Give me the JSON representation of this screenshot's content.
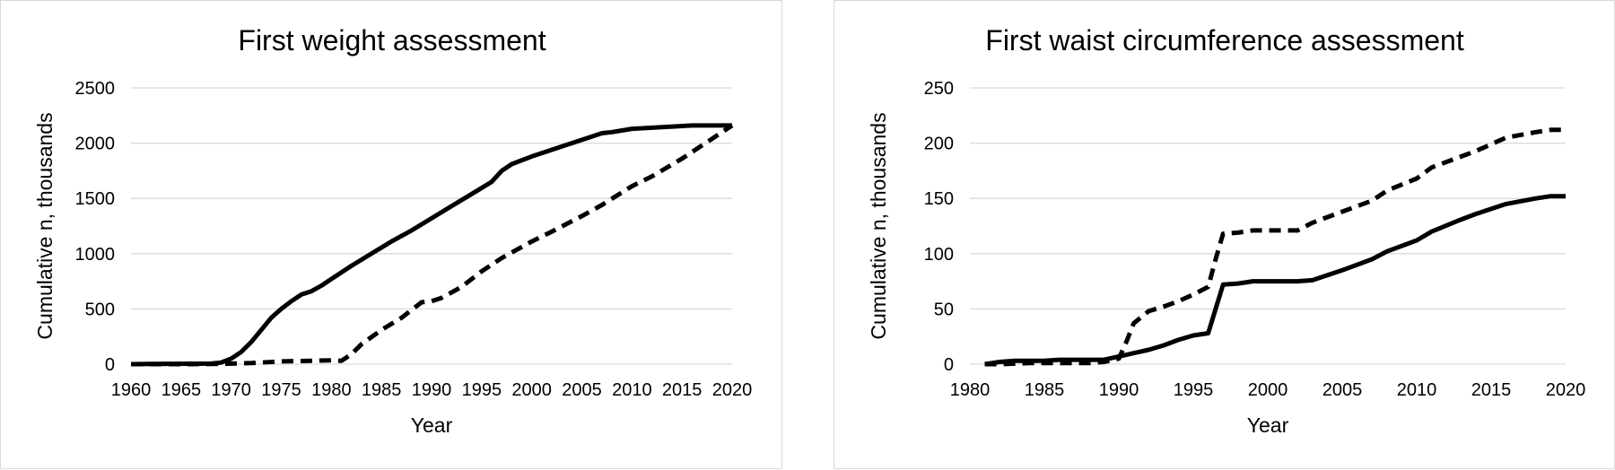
{
  "chart_data": [
    {
      "type": "line",
      "title": "First weight assessment",
      "xlabel": "Year",
      "ylabel": "Cumulative n, thousands",
      "xlim": [
        1960,
        2020
      ],
      "ylim": [
        0,
        2500
      ],
      "xticks": [
        1960,
        1965,
        1970,
        1975,
        1980,
        1985,
        1990,
        1995,
        2000,
        2005,
        2010,
        2015,
        2020
      ],
      "yticks": [
        0,
        500,
        1000,
        1500,
        2000,
        2500
      ],
      "grid": true,
      "legend": "none",
      "series": [
        {
          "style": "solid",
          "x": [
            1960,
            1962,
            1964,
            1966,
            1968,
            1969,
            1970,
            1971,
            1972,
            1973,
            1974,
            1975,
            1976,
            1977,
            1978,
            1979,
            1980,
            1982,
            1984,
            1986,
            1988,
            1990,
            1992,
            1994,
            1996,
            1997,
            1998,
            2000,
            2002,
            2004,
            2006,
            2007,
            2008,
            2010,
            2012,
            2014,
            2016,
            2018,
            2020
          ],
          "y": [
            0,
            2,
            3,
            4,
            5,
            15,
            50,
            110,
            200,
            310,
            420,
            500,
            570,
            630,
            660,
            710,
            770,
            890,
            1000,
            1110,
            1210,
            1320,
            1430,
            1540,
            1650,
            1750,
            1810,
            1880,
            1940,
            2000,
            2060,
            2090,
            2100,
            2130,
            2140,
            2150,
            2160,
            2160,
            2160
          ]
        },
        {
          "style": "dashed",
          "x": [
            1960,
            1965,
            1968,
            1970,
            1972,
            1975,
            1978,
            1980,
            1981,
            1982,
            1983,
            1985,
            1987,
            1988,
            1989,
            1990,
            1991,
            1993,
            1995,
            1997,
            2000,
            2002,
            2005,
            2007,
            2010,
            2012,
            2015,
            2018,
            2020
          ],
          "y": [
            0,
            0,
            2,
            5,
            10,
            25,
            30,
            35,
            30,
            90,
            180,
            310,
            420,
            490,
            560,
            570,
            600,
            700,
            840,
            960,
            1110,
            1200,
            1340,
            1440,
            1610,
            1700,
            1860,
            2040,
            2160
          ]
        }
      ]
    },
    {
      "type": "line",
      "title": "First waist circumference assessment",
      "xlabel": "Year",
      "ylabel": "Cumulative n, thousands",
      "xlim": [
        1980,
        2020
      ],
      "ylim": [
        0,
        250
      ],
      "xticks": [
        1980,
        1985,
        1990,
        1995,
        2000,
        2005,
        2010,
        2015,
        2020
      ],
      "yticks": [
        0,
        50,
        100,
        150,
        200,
        250
      ],
      "grid": true,
      "legend": "none",
      "series": [
        {
          "style": "solid",
          "x": [
            1981,
            1982,
            1983,
            1985,
            1986,
            1989,
            1990,
            1991,
            1992,
            1993,
            1994,
            1995,
            1996,
            1996.5,
            1997,
            1998,
            1999,
            2000,
            2001,
            2002,
            2003,
            2005,
            2007,
            2008,
            2010,
            2011,
            2013,
            2014,
            2016,
            2018,
            2019,
            2020
          ],
          "y": [
            0,
            2,
            3,
            3,
            4,
            4,
            7,
            10,
            13,
            17,
            22,
            26,
            28,
            50,
            72,
            73,
            75,
            75,
            75,
            75,
            76,
            85,
            95,
            102,
            112,
            120,
            131,
            136,
            145,
            150,
            152,
            152
          ]
        },
        {
          "style": "dashed",
          "x": [
            1981,
            1982,
            1984,
            1986,
            1988,
            1989,
            1990,
            1990.5,
            1991,
            1992,
            1993,
            1994,
            1995,
            1996,
            1996.5,
            1997,
            1998,
            1999,
            2000,
            2001,
            2002,
            2003,
            2005,
            2007,
            2008,
            2010,
            2011,
            2013,
            2014,
            2016,
            2018,
            2019,
            2020
          ],
          "y": [
            0,
            0,
            1,
            1,
            1,
            2,
            5,
            20,
            37,
            48,
            52,
            57,
            63,
            70,
            95,
            118,
            119,
            121,
            121,
            121,
            121,
            128,
            138,
            148,
            157,
            168,
            178,
            188,
            193,
            205,
            210,
            212,
            212
          ]
        }
      ]
    }
  ]
}
